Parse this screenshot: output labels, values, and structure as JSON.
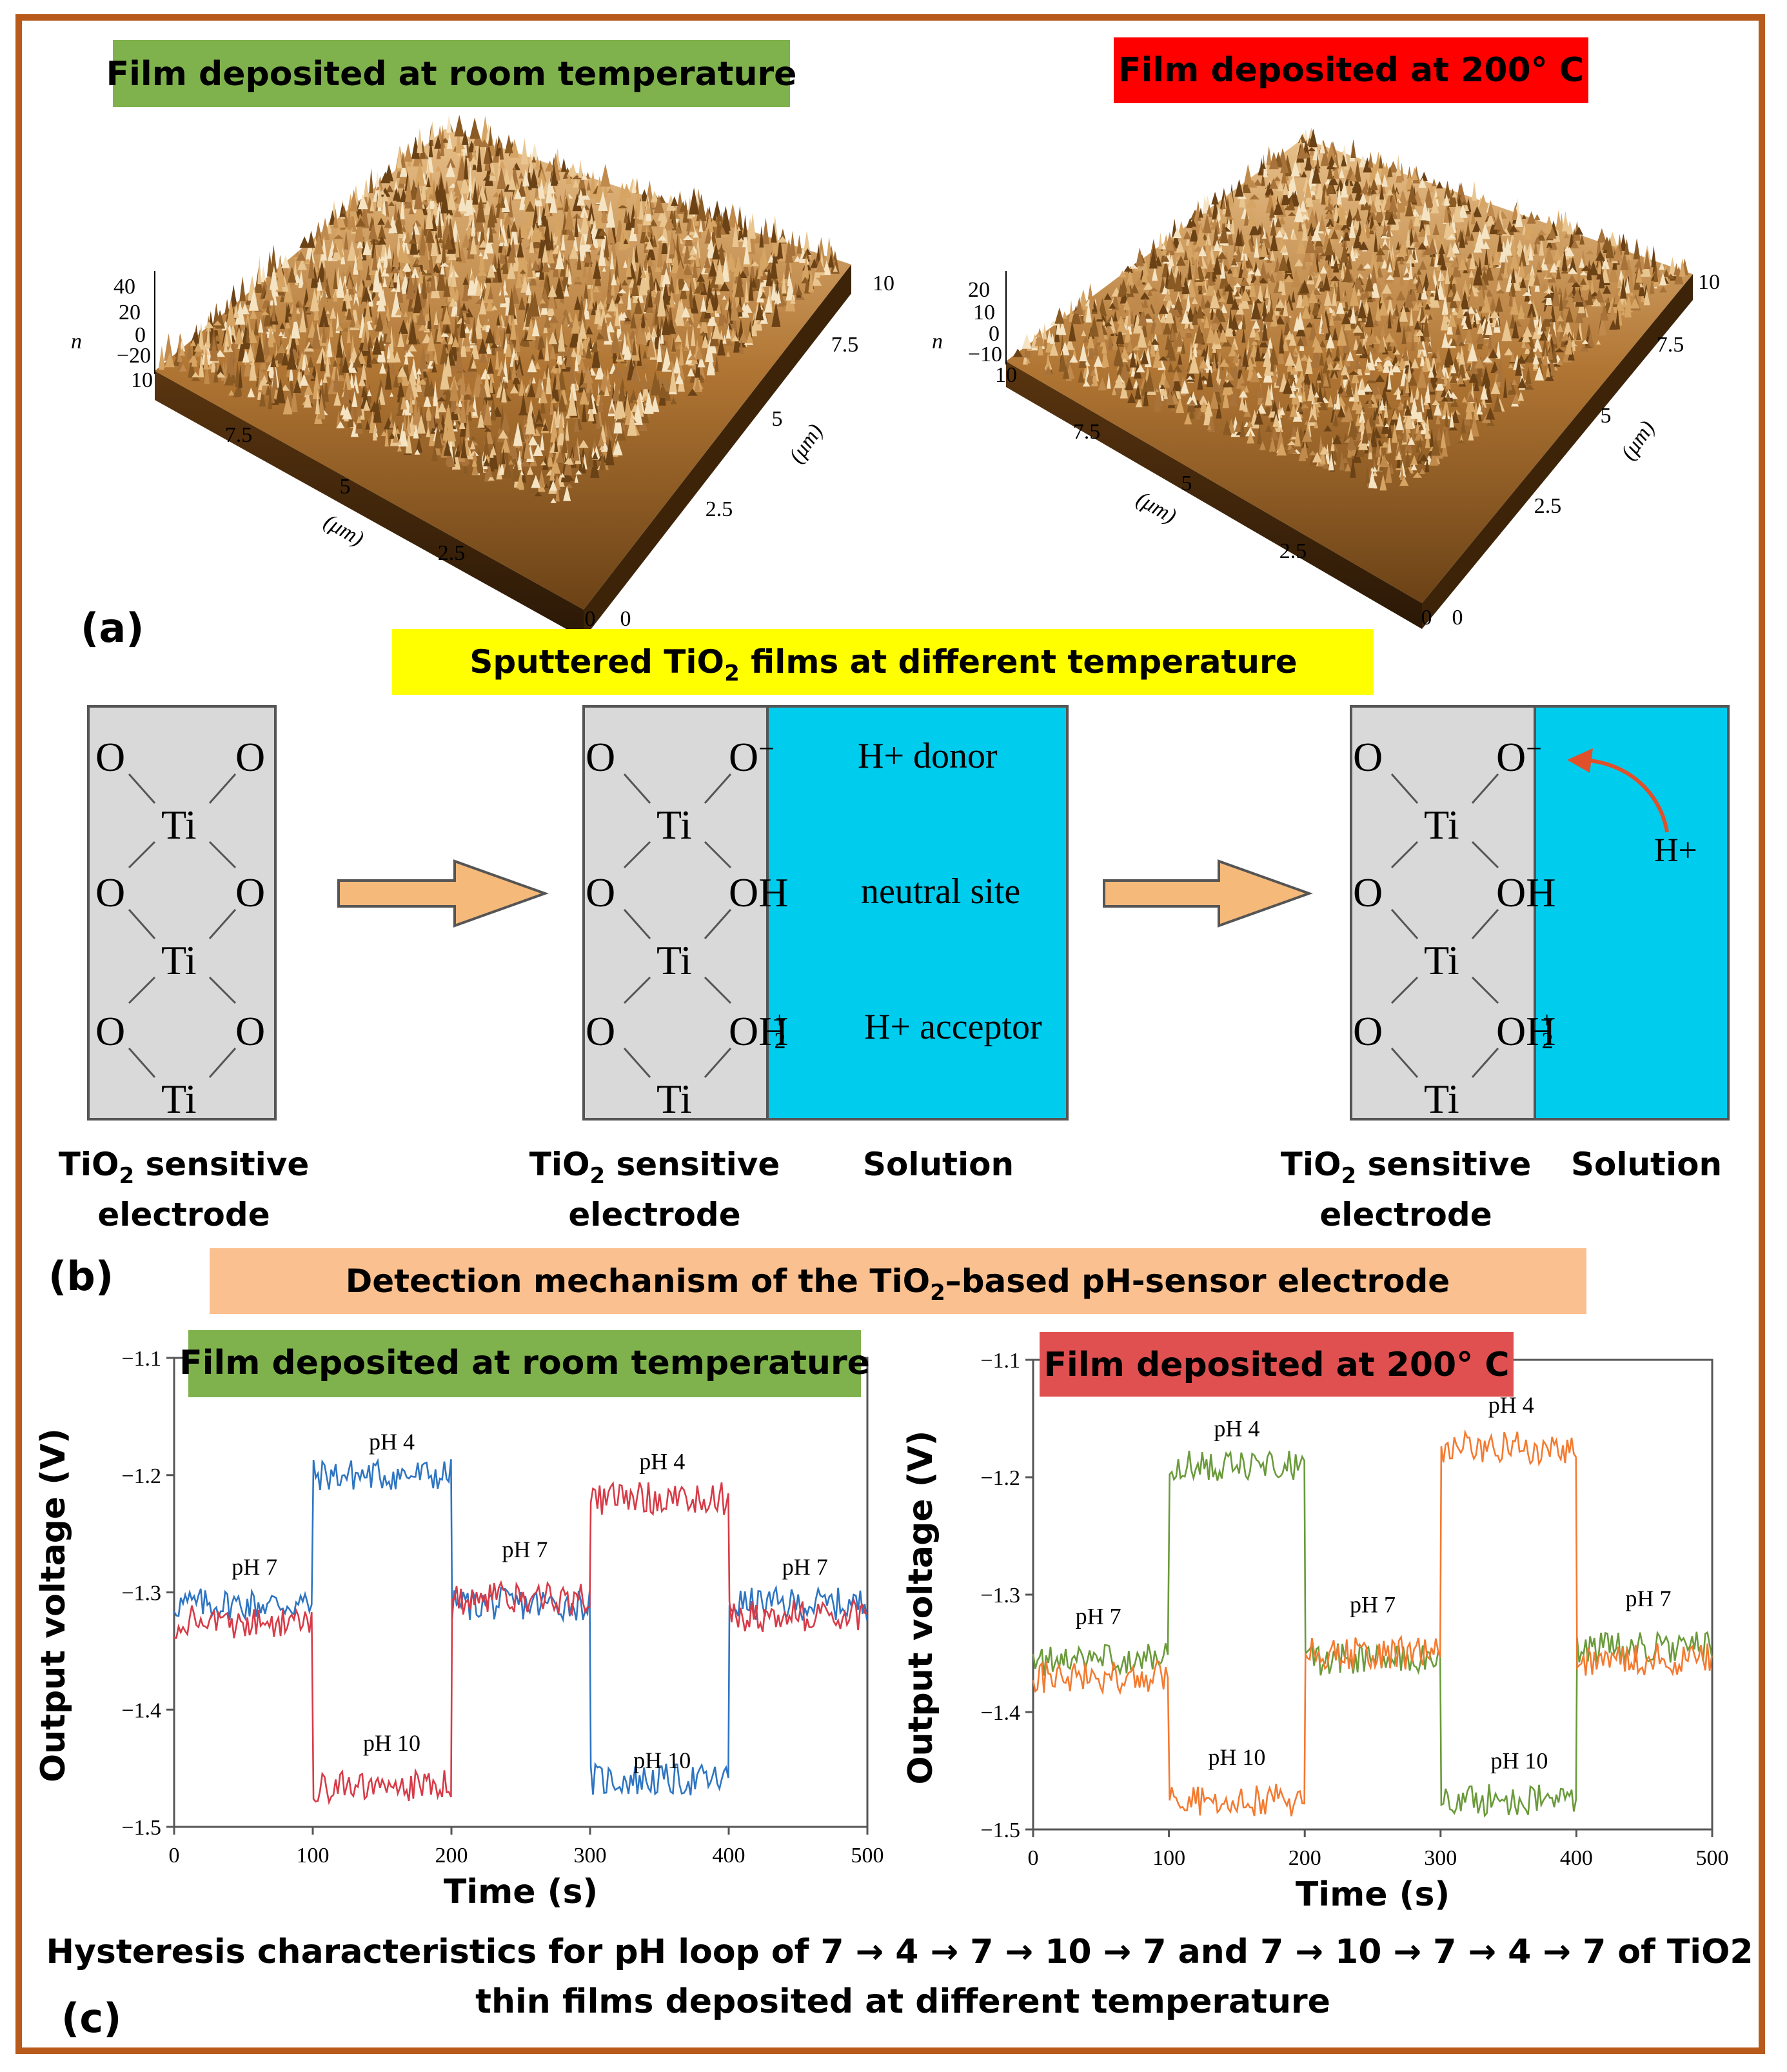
{
  "panel_a": {
    "left_title": "Film deposited at room temperature",
    "right_title": "Film deposited at 200° C",
    "left_z_ticks": [
      "40",
      "20",
      "0",
      "−20"
    ],
    "right_z_ticks": [
      "20",
      "10",
      "0",
      "−10"
    ],
    "z_label": "n",
    "x_ticks": [
      "10",
      "7.5",
      "5",
      "2.5",
      "0"
    ],
    "y_ticks": [
      "10",
      "7.5",
      "5",
      "2.5",
      "0"
    ],
    "unit_label": "(μm)",
    "label": "(a)",
    "caption_pre": "Sputtered TiO",
    "caption_sub": "2",
    "caption_post": " films at different temperature",
    "colors": {
      "left_title_bg": "#7fb24c",
      "right_title_bg": "#ff0000",
      "caption_bg": "#ffff00",
      "surface_dark": "#7a4d1a",
      "surface_light": "#d9a86a"
    }
  },
  "panel_b": {
    "atom_o": "O",
    "atom_ti": "Ti",
    "oh": "OH",
    "oh2": "OH",
    "h_minus": "−",
    "h_plus_sup": "+",
    "sub2": "2",
    "h_donor": "H+ donor",
    "neutral_site": "neutral site",
    "h_acceptor": "H+ acceptor",
    "h_plus": "H+",
    "electrode_line1_pre": "TiO",
    "electrode_line1_sub": "2",
    "electrode_line1_post": " sensitive",
    "electrode_line2": "electrode",
    "solution": "Solution",
    "label": "(b)",
    "caption_pre": "Detection mechanism of the TiO",
    "caption_sub": "2",
    "caption_post": "–based pH-sensor electrode",
    "colors": {
      "electrode_bg": "#d9d9d9",
      "solution_bg": "#00ccee",
      "arrow": "#f5b97a",
      "caption_bg": "#fbc08f",
      "h_arrow": "#e0502a"
    }
  },
  "panel_c": {
    "label": "(c)",
    "caption_line1": "Hysteresis characteristics for pH loop of 7 → 4 → 7 → 10 → 7 and 7 → 10 → 7 → 4 → 7 of TiO2",
    "caption_line2": "thin films deposited at different temperature",
    "colors": {
      "left_title_bg": "#7fb24c",
      "right_title_bg": "#e05050"
    }
  },
  "chart_data": [
    {
      "type": "line",
      "title": "Film deposited at room temperature",
      "xlabel": "Time (s)",
      "ylabel": "Output voltage (V)",
      "xlim": [
        0,
        500
      ],
      "ylim": [
        -1.5,
        -1.1
      ],
      "x_ticks": [
        0,
        100,
        200,
        300,
        400,
        500
      ],
      "y_ticks": [
        -1.1,
        -1.2,
        -1.3,
        -1.4,
        -1.5
      ],
      "y_tick_labels": [
        "−1.1",
        "−1.2",
        "−1.3",
        "−1.4",
        "−1.5"
      ],
      "series": [
        {
          "name": "7→4→7→10→7",
          "color": "#2e75c2",
          "segments": [
            [
              0,
              100,
              -1.31
            ],
            [
              100,
              200,
              -1.2
            ],
            [
              200,
              300,
              -1.31
            ],
            [
              300,
              400,
              -1.46
            ],
            [
              400,
              500,
              -1.31
            ]
          ]
        },
        {
          "name": "7→10→7→4→7",
          "color": "#d73b47",
          "segments": [
            [
              0,
              100,
              -1.325
            ],
            [
              100,
              200,
              -1.465
            ],
            [
              200,
              300,
              -1.305
            ],
            [
              300,
              400,
              -1.22
            ],
            [
              400,
              500,
              -1.32
            ]
          ]
        }
      ],
      "annotations": [
        {
          "text": "pH 7",
          "x": 58,
          "y": -1.285
        },
        {
          "text": "pH 4",
          "x": 157,
          "y": -1.178
        },
        {
          "text": "pH 10",
          "x": 157,
          "y": -1.435
        },
        {
          "text": "pH 7",
          "x": 253,
          "y": -1.27
        },
        {
          "text": "pH 4",
          "x": 352,
          "y": -1.195
        },
        {
          "text": "pH 10",
          "x": 352,
          "y": -1.45
        },
        {
          "text": "pH 7",
          "x": 455,
          "y": -1.285
        }
      ]
    },
    {
      "type": "line",
      "title": "Film deposited at 200° C",
      "xlabel": "Time (s)",
      "ylabel": "Output voltage (V)",
      "xlim": [
        0,
        500
      ],
      "ylim": [
        -1.5,
        -1.1
      ],
      "x_ticks": [
        0,
        100,
        200,
        300,
        400,
        500
      ],
      "y_ticks": [
        -1.1,
        -1.2,
        -1.3,
        -1.4,
        -1.5
      ],
      "y_tick_labels": [
        "−1.1",
        "−1.2",
        "−1.3",
        "−1.4",
        "−1.5"
      ],
      "series": [
        {
          "name": "7→4→7→10→7",
          "color": "#6a9a3a",
          "segments": [
            [
              0,
              100,
              -1.355
            ],
            [
              100,
              200,
              -1.19
            ],
            [
              200,
              300,
              -1.355
            ],
            [
              300,
              400,
              -1.475
            ],
            [
              400,
              500,
              -1.345
            ]
          ]
        },
        {
          "name": "7→10→7→4→7",
          "color": "#f47a30",
          "segments": [
            [
              0,
              100,
              -1.37
            ],
            [
              100,
              200,
              -1.475
            ],
            [
              200,
              300,
              -1.35
            ],
            [
              300,
              400,
              -1.175
            ],
            [
              400,
              500,
              -1.355
            ]
          ]
        }
      ],
      "annotations": [
        {
          "text": "pH 7",
          "x": 48,
          "y": -1.325
        },
        {
          "text": "pH 4",
          "x": 150,
          "y": -1.165
        },
        {
          "text": "pH 10",
          "x": 150,
          "y": -1.445
        },
        {
          "text": "pH 7",
          "x": 250,
          "y": -1.315
        },
        {
          "text": "pH 4",
          "x": 352,
          "y": -1.145
        },
        {
          "text": "pH 10",
          "x": 358,
          "y": -1.448
        },
        {
          "text": "pH 7",
          "x": 453,
          "y": -1.31
        }
      ]
    }
  ]
}
